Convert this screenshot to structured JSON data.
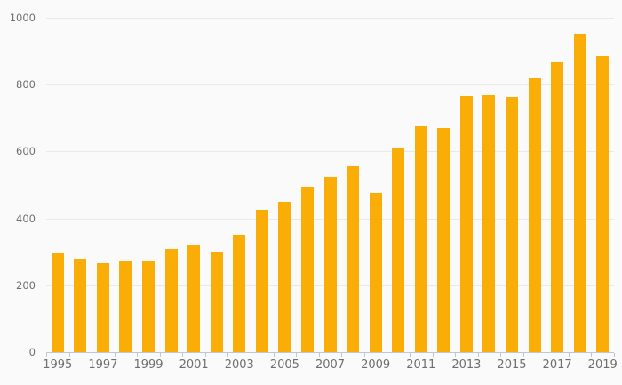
{
  "chart": {
    "title": "",
    "colors": {
      "background": "#fafafa",
      "bar": "#f9ad06",
      "gridline": "#e9e9e9",
      "axis": "#bdc6da",
      "tick_label": "#6f6f6f"
    }
  },
  "chart_data": {
    "type": "bar",
    "title": "",
    "xlabel": "",
    "ylabel": "",
    "legend": "none",
    "grid": "horizontal",
    "categories": [
      "1995",
      "1996",
      "1997",
      "1998",
      "1999",
      "2000",
      "2001",
      "2002",
      "2003",
      "2004",
      "2005",
      "2006",
      "2007",
      "2008",
      "2009",
      "2010",
      "2011",
      "2012",
      "2013",
      "2014",
      "2015",
      "2016",
      "2017",
      "2018",
      "2019"
    ],
    "values": [
      295,
      280,
      265,
      270,
      273,
      308,
      321,
      300,
      350,
      425,
      450,
      494,
      525,
      555,
      475,
      609,
      676,
      671,
      765,
      769,
      763,
      818,
      866,
      953,
      886
    ],
    "x_tick_labels": [
      "1995",
      "1997",
      "1999",
      "2001",
      "2003",
      "2005",
      "2007",
      "2009",
      "2011",
      "2013",
      "2015",
      "2017",
      "2019"
    ],
    "y_ticks": [
      0,
      200,
      400,
      600,
      800,
      1000
    ],
    "ylim": [
      0,
      1000
    ]
  }
}
